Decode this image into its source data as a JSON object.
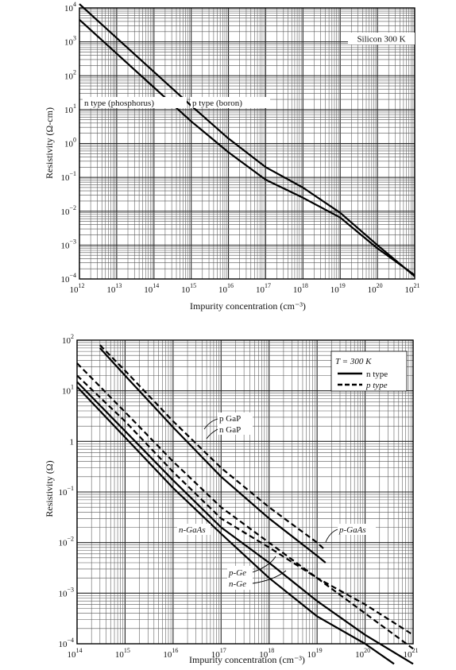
{
  "chart_data": [
    {
      "type": "line",
      "title": "",
      "annotation": "Silicon 300 K",
      "xlabel": "Impurity concentration (cm⁻³)",
      "ylabel": "Resistivity (Ω-cm)",
      "xscale": "log",
      "yscale": "log",
      "xlim": [
        1000000000000.0,
        1e+21
      ],
      "ylim": [
        0.0001,
        10000.0
      ],
      "grid": true,
      "x_tick_labels": [
        {
          "base": "10",
          "exp": "12"
        },
        {
          "base": "10",
          "exp": "13"
        },
        {
          "base": "10",
          "exp": "14"
        },
        {
          "base": "10",
          "exp": "15"
        },
        {
          "base": "10",
          "exp": "16"
        },
        {
          "base": "10",
          "exp": "17"
        },
        {
          "base": "10",
          "exp": "18"
        },
        {
          "base": "10",
          "exp": "19"
        },
        {
          "base": "10",
          "exp": "20"
        },
        {
          "base": "10",
          "exp": "21"
        }
      ],
      "y_tick_labels": [
        {
          "base": "10",
          "exp": "−4"
        },
        {
          "base": "10",
          "exp": "−3"
        },
        {
          "base": "10",
          "exp": "−2"
        },
        {
          "base": "10",
          "exp": "−1"
        },
        {
          "base": "10",
          "exp": "0"
        },
        {
          "base": "10",
          "exp": "1"
        },
        {
          "base": "10",
          "exp": "2"
        },
        {
          "base": "10",
          "exp": "3"
        },
        {
          "base": "10",
          "exp": "4"
        }
      ],
      "series": [
        {
          "name": "n type (phosphorus)",
          "style": "solid",
          "x": [
            1000000000000.0,
            10000000000000.0,
            100000000000000.0,
            1000000000000000.0,
            1e+16,
            1e+17,
            1e+18,
            1e+19,
            1e+20,
            1e+21
          ],
          "y": [
            4500,
            450,
            45,
            4.5,
            0.55,
            0.085,
            0.025,
            0.0065,
            0.0008,
            0.00013
          ]
        },
        {
          "name": "p type (boron)",
          "style": "solid",
          "x": [
            1000000000000.0,
            10000000000000.0,
            100000000000000.0,
            1000000000000000.0,
            1e+16,
            1e+17,
            1e+18,
            1e+19,
            1e+20,
            1e+21
          ],
          "y": [
            13000,
            1300,
            130,
            13,
            1.4,
            0.2,
            0.05,
            0.009,
            0.001,
            0.00012
          ]
        }
      ]
    },
    {
      "type": "line",
      "title": "",
      "xlabel": "Impurity concentration (cm⁻³)",
      "ylabel": "Resistivity (Ω)",
      "xscale": "log",
      "yscale": "log",
      "xlim": [
        100000000000000.0,
        1e+21
      ],
      "ylim": [
        0.0001,
        100.0
      ],
      "grid": true,
      "legend": {
        "position": "top-right",
        "title": "T = 300 K",
        "entries": [
          {
            "label": "n type",
            "style": "solid"
          },
          {
            "label": "p type",
            "style": "dashed"
          }
        ]
      },
      "x_tick_labels": [
        {
          "base": "10",
          "exp": "14"
        },
        {
          "base": "10",
          "exp": "15"
        },
        {
          "base": "10",
          "exp": "16"
        },
        {
          "base": "10",
          "exp": "17"
        },
        {
          "base": "10",
          "exp": "18"
        },
        {
          "base": "10",
          "exp": "19"
        },
        {
          "base": "10",
          "exp": "20"
        },
        {
          "base": "10",
          "exp": "21"
        }
      ],
      "y_tick_labels": [
        {
          "base": "10",
          "exp": "−4"
        },
        {
          "base": "10",
          "exp": "−3"
        },
        {
          "base": "10",
          "exp": "−2"
        },
        {
          "base": "10",
          "exp": "−1"
        },
        {
          "base": "1",
          "exp": ""
        },
        {
          "base": "10",
          "exp": "1"
        },
        {
          "base": "10",
          "exp": "2"
        }
      ],
      "curve_labels": {
        "p_gap": "p GaP",
        "n_gap": "n GaP",
        "n_gaas": "n-GaAs",
        "p_gaas": "p-GaAs",
        "p_ge": "p-Ge",
        "n_ge": "n-Ge"
      },
      "series": [
        {
          "name": "p GaP",
          "style": "dashed",
          "x": [
            300000000000000.0,
            1000000000000000.0,
            1e+16,
            1e+17,
            1e+18,
            1e+19,
            1.5e+19
          ],
          "y": [
            80,
            25,
            2.5,
            0.3,
            0.05,
            0.01,
            0.007
          ]
        },
        {
          "name": "n GaP",
          "style": "solid",
          "x": [
            300000000000000.0,
            1000000000000000.0,
            1e+16,
            1e+17,
            1e+18,
            1e+19,
            1.5e+19
          ],
          "y": [
            70,
            20,
            1.9,
            0.2,
            0.03,
            0.0055,
            0.004
          ]
        },
        {
          "name": "p-GaAs",
          "style": "dashed",
          "x": [
            100000000000000.0,
            1000000000000000.0,
            1e+16,
            1e+17,
            1e+18,
            1e+19,
            1e+20,
            1e+21
          ],
          "y": [
            20,
            2.5,
            0.25,
            0.03,
            0.008,
            0.002,
            0.0006,
            0.00015
          ]
        },
        {
          "name": "n-GaAs",
          "style": "solid",
          "x": [
            100000000000000.0,
            1000000000000000.0,
            1e+16,
            1e+17,
            1e+18,
            1e+19,
            1e+20,
            4e+20
          ],
          "y": [
            12,
            1.2,
            0.12,
            0.015,
            0.002,
            0.00035,
            0.0001,
            4e-05
          ]
        },
        {
          "name": "p-Ge",
          "style": "dashed",
          "x": [
            100000000000000.0,
            1000000000000000.0,
            1e+16,
            1e+17,
            1e+18,
            1e+19,
            1e+20,
            1e+21
          ],
          "y": [
            35,
            3.8,
            0.4,
            0.05,
            0.01,
            0.002,
            0.0004,
            8e-05
          ]
        },
        {
          "name": "n-Ge",
          "style": "solid",
          "x": [
            100000000000000.0,
            1000000000000000.0,
            1e+16,
            1e+17,
            1e+18,
            1e+19,
            1e+20,
            1e+21
          ],
          "y": [
            15,
            1.6,
            0.17,
            0.02,
            0.004,
            0.0007,
            0.00015,
            4e-05
          ]
        }
      ]
    }
  ]
}
